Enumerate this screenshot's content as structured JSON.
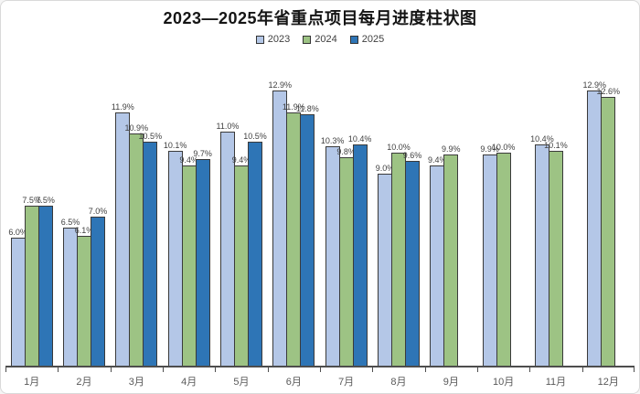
{
  "chart_data": {
    "type": "bar",
    "title": "2023—2025年省重点项目每月进度柱状图",
    "categories": [
      "1月",
      "2月",
      "3月",
      "4月",
      "5月",
      "6月",
      "7月",
      "8月",
      "9月",
      "10月",
      "11月",
      "12月"
    ],
    "series": [
      {
        "name": "2023",
        "color": "#b4c7e7",
        "values": [
          6.0,
          6.5,
          11.9,
          10.1,
          11.0,
          12.9,
          10.3,
          9.0,
          9.4,
          9.9,
          10.4,
          12.9
        ]
      },
      {
        "name": "2024",
        "color": "#9dc384",
        "values": [
          7.5,
          6.1,
          10.9,
          9.4,
          9.4,
          11.9,
          9.8,
          10.0,
          9.9,
          10.0,
          10.1,
          12.6
        ]
      },
      {
        "name": "2025",
        "color": "#2e75b6",
        "values": [
          7.5,
          7.0,
          10.5,
          9.7,
          10.5,
          11.8,
          10.4,
          9.6,
          null,
          null,
          null,
          null
        ]
      }
    ],
    "value_suffix": "%",
    "data_labels": true,
    "grid": false,
    "legend_position": "top",
    "xlabel": "",
    "ylabel": "",
    "ylim": [
      0,
      14
    ],
    "y_axis_visible": false,
    "bar_border_color": "#3a3a3a",
    "axis_color": "#4d4d4d",
    "title_color": "#151515"
  }
}
